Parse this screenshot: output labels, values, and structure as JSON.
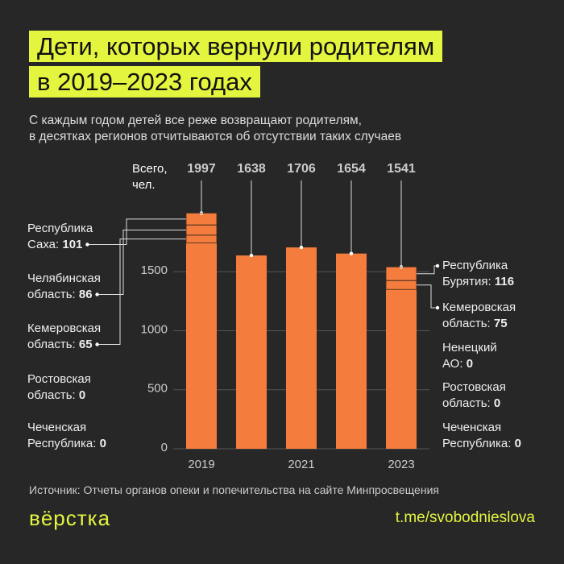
{
  "chart_data": {
    "type": "bar",
    "title": "Дети, которых вернули родителям\nв 2019–2023 годах",
    "subtitle": "С каждым годом детей все реже возвращают родителям,\nв десятках регионов отчитываются об отсутствии таких случаев",
    "value_note": "Всего,\nчел.",
    "categories": [
      "2019",
      null,
      "2021",
      null,
      "2023"
    ],
    "values": [
      1997,
      1638,
      1706,
      1654,
      1541
    ],
    "color": "#f47c3c",
    "ylim": [
      0,
      2000
    ],
    "yticks": [
      0,
      500,
      1000,
      1500
    ],
    "grid": true,
    "left_regions": [
      {
        "name": "Республика\nСаха:",
        "value": 101
      },
      {
        "name": "Челябинская\nобласть:",
        "value": 86
      },
      {
        "name": "Кемеровская\nобласть:",
        "value": 65
      },
      {
        "name": "Ростовская\nобласть:",
        "value": 0
      },
      {
        "name": "Чеченская\nРеспублика:",
        "value": 0
      }
    ],
    "right_regions": [
      {
        "name": "Республика\nБурятия:",
        "value": 116
      },
      {
        "name": "Кемеровская\nобласть:",
        "value": 75
      },
      {
        "name": "Ненецкий\nАО:",
        "value": 0
      },
      {
        "name": "Ростовская\nобласть:",
        "value": 0
      },
      {
        "name": "Чеченская\nРеспублика:",
        "value": 0
      }
    ],
    "source": "Источник: Отчеты органов опеки и попечительства на сайте Минпросвещения"
  },
  "footer": {
    "logo": "вёрстка",
    "link": "t.me/svobodnieslova"
  }
}
